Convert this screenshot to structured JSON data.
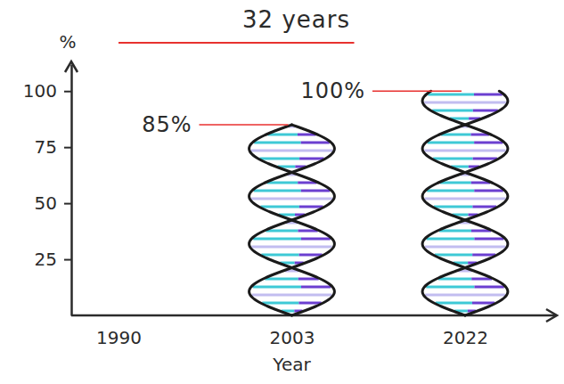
{
  "chart_data": {
    "type": "bar",
    "annotations": [
      {
        "text": "32 years"
      }
    ],
    "x_label": "Year",
    "y_label": "%",
    "categories": [
      "1990",
      "2003",
      "2022"
    ],
    "values": [
      null,
      85,
      100
    ],
    "value_labels": [
      null,
      "85%",
      "100%"
    ],
    "data_labels": true,
    "ylim": [
      0,
      112
    ],
    "yticks": [
      25,
      50,
      75,
      100
    ],
    "grid": false,
    "color": "#3ec9d6"
  }
}
